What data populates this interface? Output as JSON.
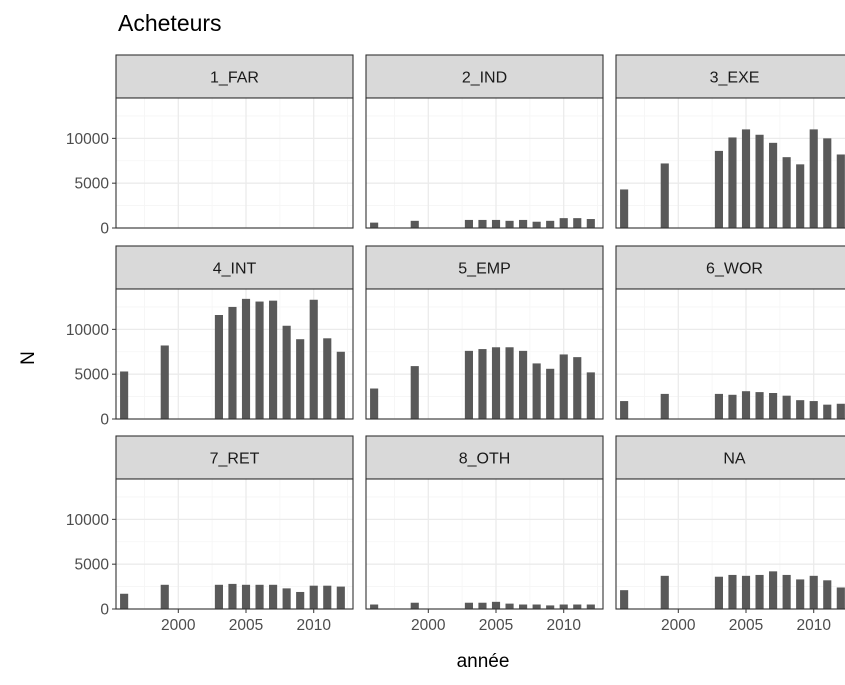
{
  "chart_data": {
    "type": "bar",
    "title": "Acheteurs",
    "xlabel": "année",
    "ylabel": "N",
    "ylim": [
      0,
      14500
    ],
    "xlim": [
      1995.4,
      2012.9
    ],
    "x_ticks": [
      2000,
      2005,
      2010
    ],
    "y_ticks": [
      0,
      5000,
      10000
    ],
    "grid": true,
    "years": [
      1996,
      1997,
      1998,
      1999,
      2000,
      2001,
      2002,
      2003,
      2004,
      2005,
      2006,
      2007,
      2008,
      2009,
      2010,
      2011,
      2012
    ],
    "facets": [
      {
        "label": "1_FAR",
        "values": [
          0,
          0,
          0,
          0,
          0,
          0,
          0,
          0,
          0,
          0,
          0,
          0,
          0,
          0,
          0,
          0,
          0
        ]
      },
      {
        "label": "2_IND",
        "values": [
          600,
          0,
          0,
          800,
          0,
          0,
          0,
          900,
          900,
          900,
          800,
          900,
          700,
          800,
          1100,
          1100,
          1000
        ]
      },
      {
        "label": "3_EXE",
        "values": [
          4300,
          0,
          0,
          7200,
          0,
          0,
          0,
          8600,
          10100,
          11000,
          10400,
          9500,
          7900,
          7100,
          11000,
          10000,
          8200
        ]
      },
      {
        "label": "4_INT",
        "values": [
          5300,
          0,
          0,
          8200,
          0,
          0,
          0,
          11600,
          12500,
          13400,
          13100,
          13200,
          10400,
          8900,
          13300,
          9000,
          7500
        ]
      },
      {
        "label": "5_EMP",
        "values": [
          3400,
          0,
          0,
          5900,
          0,
          0,
          0,
          7600,
          7800,
          8000,
          8000,
          7600,
          6200,
          5600,
          7200,
          6900,
          5200
        ]
      },
      {
        "label": "6_WOR",
        "values": [
          2000,
          0,
          0,
          2800,
          0,
          0,
          0,
          2800,
          2700,
          3100,
          3000,
          2900,
          2600,
          2100,
          2000,
          1600,
          1700
        ]
      },
      {
        "label": "7_RET",
        "values": [
          1700,
          0,
          0,
          2700,
          0,
          0,
          0,
          2700,
          2800,
          2700,
          2700,
          2700,
          2300,
          1900,
          2600,
          2600,
          2500
        ]
      },
      {
        "label": "8_OTH",
        "values": [
          500,
          0,
          0,
          700,
          0,
          0,
          0,
          700,
          700,
          800,
          600,
          500,
          500,
          400,
          500,
          500,
          500
        ]
      },
      {
        "label": "NA",
        "values": [
          2100,
          0,
          0,
          3700,
          0,
          0,
          0,
          3600,
          3800,
          3700,
          3800,
          4200,
          3800,
          3300,
          3700,
          3200,
          2400
        ]
      }
    ],
    "colors": {
      "bar": "#595959",
      "strip_fill": "#d9d9d9",
      "panel_border": "#333333",
      "grid_major": "#ebebeb",
      "grid_minor": "#f5f5f5",
      "text": "#000000",
      "axis_text": "#4d4d4d"
    }
  }
}
